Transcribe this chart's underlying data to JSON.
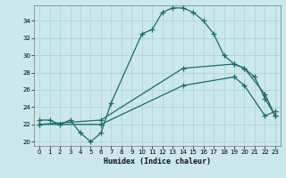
{
  "xlabel": "Humidex (Indice chaleur)",
  "bg_color": "#cce8ea",
  "grid_color": "#b0d4d8",
  "line_color": "#1a6b6b",
  "xlim": [
    -0.5,
    23.5
  ],
  "ylim": [
    19.5,
    35.8
  ],
  "xticks": [
    0,
    1,
    2,
    3,
    4,
    5,
    6,
    7,
    8,
    9,
    10,
    11,
    12,
    13,
    14,
    15,
    16,
    17,
    18,
    19,
    20,
    21,
    22,
    23
  ],
  "yticks": [
    20,
    22,
    24,
    26,
    28,
    30,
    32,
    34
  ],
  "series": [
    {
      "x": [
        0,
        1,
        2,
        3,
        4,
        5,
        6,
        7,
        10,
        11,
        12,
        13,
        14,
        15,
        16,
        17,
        18,
        19,
        20,
        21,
        22,
        23
      ],
      "y": [
        22.5,
        22.5,
        22.0,
        22.5,
        21.0,
        20.0,
        21.0,
        24.5,
        32.5,
        33.0,
        35.0,
        35.5,
        35.5,
        35.0,
        34.0,
        32.5,
        30.0,
        29.0,
        28.5,
        27.5,
        25.0,
        23.0
      ]
    },
    {
      "x": [
        0,
        6,
        14,
        19,
        20,
        22,
        23
      ],
      "y": [
        22.0,
        22.5,
        28.5,
        29.0,
        28.5,
        25.5,
        23.0
      ]
    },
    {
      "x": [
        0,
        6,
        14,
        19,
        20,
        22,
        23
      ],
      "y": [
        22.0,
        22.0,
        26.5,
        27.5,
        26.5,
        23.0,
        23.5
      ]
    }
  ]
}
